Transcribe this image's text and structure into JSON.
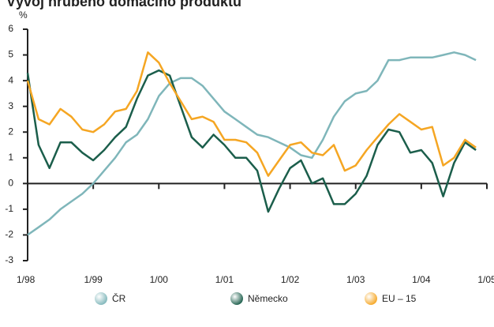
{
  "chart_data": {
    "type": "line",
    "title": "Vývoj hrubého domácího produktu",
    "y_label": "%",
    "x": [
      1998,
      1998.1667,
      1998.3333,
      1998.5,
      1998.6667,
      1998.8333,
      1999,
      1999.1667,
      1999.3333,
      1999.5,
      1999.6667,
      1999.8333,
      2000,
      2000.1667,
      2000.3333,
      2000.5,
      2000.6667,
      2000.8333,
      2001,
      2001.1667,
      2001.3333,
      2001.5,
      2001.6667,
      2001.8333,
      2002,
      2002.1667,
      2002.3333,
      2002.5,
      2002.6667,
      2002.8333,
      2003,
      2003.1667,
      2003.3333,
      2003.5,
      2003.6667,
      2003.8333,
      2004,
      2004.1667,
      2004.3333,
      2004.5,
      2004.6667,
      2004.8333
    ],
    "series": [
      {
        "name": "ČR",
        "color": "#7fb6ba",
        "values": [
          -2.0,
          -1.7,
          -1.4,
          -1.0,
          -0.7,
          -0.4,
          0.0,
          0.5,
          1.0,
          1.6,
          1.9,
          2.5,
          3.4,
          3.9,
          4.1,
          4.1,
          3.8,
          3.3,
          2.8,
          2.5,
          2.2,
          1.9,
          1.8,
          1.6,
          1.4,
          1.1,
          1.0,
          1.7,
          2.6,
          3.2,
          3.5,
          3.6,
          4.0,
          4.8,
          4.8,
          4.9,
          4.9,
          4.9,
          5.0,
          5.1,
          5.0,
          4.8
        ]
      },
      {
        "name": "Německo",
        "color": "#1b5e4b",
        "values": [
          4.3,
          1.5,
          0.6,
          1.6,
          1.6,
          1.2,
          0.9,
          1.3,
          1.8,
          2.2,
          3.3,
          4.2,
          4.4,
          4.2,
          3.0,
          1.8,
          1.4,
          1.9,
          1.5,
          1.0,
          1.0,
          0.5,
          -1.1,
          -0.2,
          0.6,
          0.9,
          0.0,
          0.2,
          -0.8,
          -0.8,
          -0.4,
          0.3,
          1.5,
          2.1,
          2.0,
          1.2,
          1.3,
          0.8,
          -0.5,
          0.8,
          1.6,
          1.3
        ]
      },
      {
        "name": "EU – 15",
        "color": "#f5a623",
        "values": [
          4.0,
          2.5,
          2.3,
          2.9,
          2.6,
          2.1,
          2.0,
          2.3,
          2.8,
          2.9,
          3.6,
          5.1,
          4.7,
          3.9,
          3.2,
          2.5,
          2.6,
          2.4,
          1.7,
          1.7,
          1.6,
          1.2,
          0.3,
          0.9,
          1.5,
          1.6,
          1.2,
          1.1,
          1.5,
          0.5,
          0.7,
          1.3,
          1.8,
          2.3,
          2.7,
          2.4,
          2.1,
          2.2,
          0.7,
          1.0,
          1.7,
          1.4
        ]
      }
    ],
    "xlim": [
      1998,
      2005
    ],
    "xticks": [
      {
        "value": 1998,
        "label": "1/98"
      },
      {
        "value": 1999,
        "label": "1/99"
      },
      {
        "value": 2000,
        "label": "1/00"
      },
      {
        "value": 2001,
        "label": "1/01"
      },
      {
        "value": 2002,
        "label": "1/02"
      },
      {
        "value": 2003,
        "label": "1/03"
      },
      {
        "value": 2004,
        "label": "1/04"
      },
      {
        "value": 2005,
        "label": "1/05"
      }
    ],
    "ylim": [
      -3,
      6
    ],
    "yticks": [
      -3,
      -2,
      -1,
      0,
      1,
      2,
      3,
      4,
      5,
      6
    ]
  }
}
